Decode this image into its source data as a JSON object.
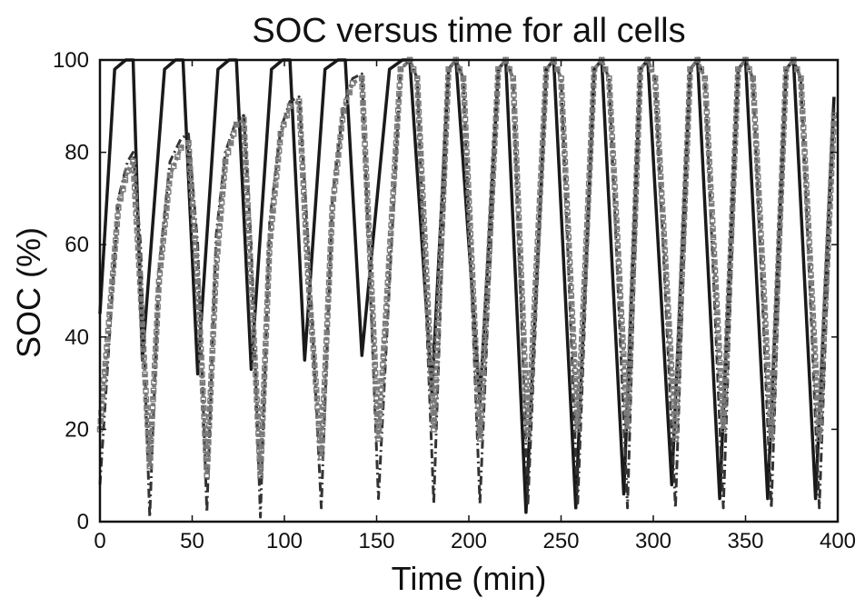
{
  "chart_data": {
    "type": "line",
    "title": "SOC versus time for all cells",
    "xlabel": "Time (min)",
    "ylabel": "SOC (%)",
    "xlim": [
      0,
      400
    ],
    "ylim": [
      0,
      100
    ],
    "xticks": [
      "0",
      "50",
      "100",
      "150",
      "200",
      "250",
      "300",
      "350",
      "400"
    ],
    "yticks": [
      "0",
      "20",
      "40",
      "60",
      "80",
      "100"
    ],
    "grid": false,
    "series": [
      {
        "style": "solid",
        "color": "#1a1a1a",
        "x": [
          0,
          8,
          14,
          18,
          23,
          35,
          41,
          45,
          53,
          64,
          70,
          74,
          82,
          93,
          99,
          103,
          111,
          122,
          129,
          133,
          142,
          157,
          164,
          168,
          180,
          189,
          193,
          206,
          216,
          220,
          231,
          242,
          246,
          258,
          268,
          272,
          284,
          293,
          297,
          310,
          320,
          324,
          336,
          346,
          350,
          362,
          372,
          376,
          388,
          398
        ],
        "y": [
          45,
          98,
          100,
          100,
          35,
          98,
          100,
          100,
          32,
          98,
          100,
          100,
          33,
          98,
          100,
          100,
          35,
          98,
          100,
          100,
          36,
          98,
          100,
          100,
          28,
          98,
          100,
          26,
          98,
          100,
          2,
          98,
          100,
          3,
          98,
          100,
          6,
          98,
          100,
          8,
          98,
          100,
          5,
          98,
          100,
          5,
          98,
          100,
          5,
          92
        ]
      },
      {
        "style": "dash-dot",
        "color": "#333333",
        "x": [
          0,
          10,
          15,
          18,
          22,
          27,
          32,
          38,
          44,
          48,
          53,
          58,
          63,
          68,
          74,
          78,
          82,
          87,
          92,
          98,
          103,
          108,
          113,
          120,
          126,
          132,
          137,
          142,
          151,
          163,
          168,
          172,
          181,
          189,
          193,
          197,
          206,
          216,
          220,
          224,
          232,
          242,
          246,
          250,
          259,
          268,
          272,
          276,
          286,
          293,
          297,
          301,
          312,
          320,
          324,
          328,
          338,
          346,
          350,
          354,
          364,
          372,
          376,
          380,
          390,
          398
        ],
        "y": [
          8,
          70,
          78,
          80,
          60,
          1,
          55,
          78,
          83,
          84,
          60,
          2,
          62,
          80,
          87,
          88,
          60,
          1,
          65,
          85,
          91,
          92,
          60,
          3,
          70,
          90,
          96,
          97,
          5,
          98,
          100,
          96,
          4,
          98,
          100,
          96,
          4,
          98,
          100,
          96,
          4,
          98,
          100,
          96,
          4,
          98,
          100,
          96,
          3,
          98,
          100,
          96,
          3,
          98,
          100,
          96,
          3,
          98,
          100,
          96,
          3,
          98,
          100,
          96,
          3,
          90
        ]
      },
      {
        "style": "square-markers",
        "color": "#7a7a7a",
        "x": [
          0,
          10,
          15,
          18,
          22,
          27,
          32,
          38,
          44,
          48,
          53,
          58,
          63,
          68,
          74,
          78,
          82,
          87,
          92,
          98,
          103,
          108,
          113,
          120,
          126,
          132,
          137,
          142,
          151,
          163,
          168,
          172,
          181,
          189,
          193,
          197,
          206,
          216,
          220,
          224,
          232,
          242,
          246,
          250,
          259,
          268,
          272,
          276,
          286,
          293,
          297,
          301,
          312,
          320,
          324,
          328,
          338,
          346,
          350,
          354,
          364,
          372,
          376,
          380,
          390,
          398
        ],
        "y": [
          20,
          68,
          76,
          78,
          50,
          12,
          52,
          75,
          81,
          82,
          52,
          10,
          55,
          78,
          86,
          87,
          52,
          10,
          60,
          84,
          90,
          91,
          52,
          14,
          68,
          89,
          95,
          96,
          18,
          98,
          100,
          96,
          20,
          98,
          100,
          96,
          18,
          98,
          100,
          96,
          18,
          98,
          100,
          96,
          20,
          98,
          100,
          96,
          20,
          98,
          100,
          96,
          18,
          98,
          100,
          96,
          20,
          98,
          100,
          96,
          18,
          98,
          100,
          96,
          18,
          88
        ]
      }
    ]
  }
}
